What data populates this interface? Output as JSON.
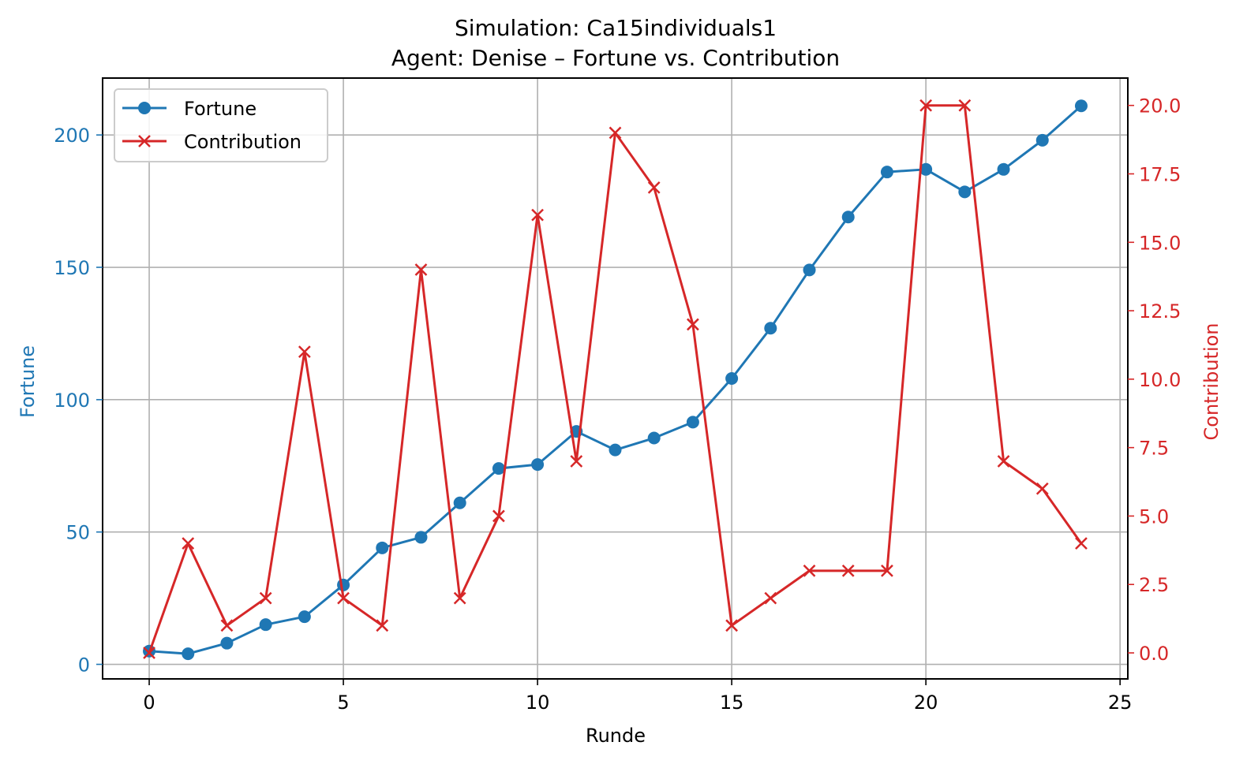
{
  "chart_data": {
    "type": "line",
    "title": "Simulation: Ca15individuals1",
    "subtitle": "Agent: Denise – Fortune vs. Contribution",
    "xlabel": "Runde",
    "ylabel_left": "Fortune",
    "ylabel_right": "Contribution",
    "xlim": [
      -1.2,
      25.2
    ],
    "ylim_left": [
      -5.5,
      221.5
    ],
    "ylim_right": [
      -0.95,
      21.0
    ],
    "x_ticks": [
      0,
      5,
      10,
      15,
      20,
      25
    ],
    "y_ticks_left": [
      0,
      50,
      100,
      150,
      200
    ],
    "y_ticks_right": [
      "0.0",
      "2.5",
      "5.0",
      "7.5",
      "10.0",
      "12.5",
      "15.0",
      "17.5",
      "20.0"
    ],
    "grid": true,
    "legend_position": "upper left",
    "x": [
      0,
      1,
      2,
      3,
      4,
      5,
      6,
      7,
      8,
      9,
      10,
      11,
      12,
      13,
      14,
      15,
      16,
      17,
      18,
      19,
      20,
      21,
      22,
      23,
      24
    ],
    "series": [
      {
        "name": "Fortune",
        "axis": "left",
        "color": "#1f77b4",
        "marker": "circle",
        "values": [
          5,
          4,
          8,
          15,
          18,
          30,
          44,
          48,
          61,
          74,
          75.5,
          88,
          81,
          85.5,
          91.5,
          108,
          127,
          149,
          169,
          186,
          187,
          178.5,
          187,
          198,
          211
        ]
      },
      {
        "name": "Contribution",
        "axis": "right",
        "color": "#d62728",
        "marker": "x",
        "values": [
          0,
          4,
          1,
          2,
          11,
          2,
          1,
          14,
          2,
          5,
          16,
          7,
          19,
          17,
          12,
          1,
          2,
          3,
          3,
          3,
          20,
          20,
          7,
          6,
          4
        ]
      }
    ]
  }
}
